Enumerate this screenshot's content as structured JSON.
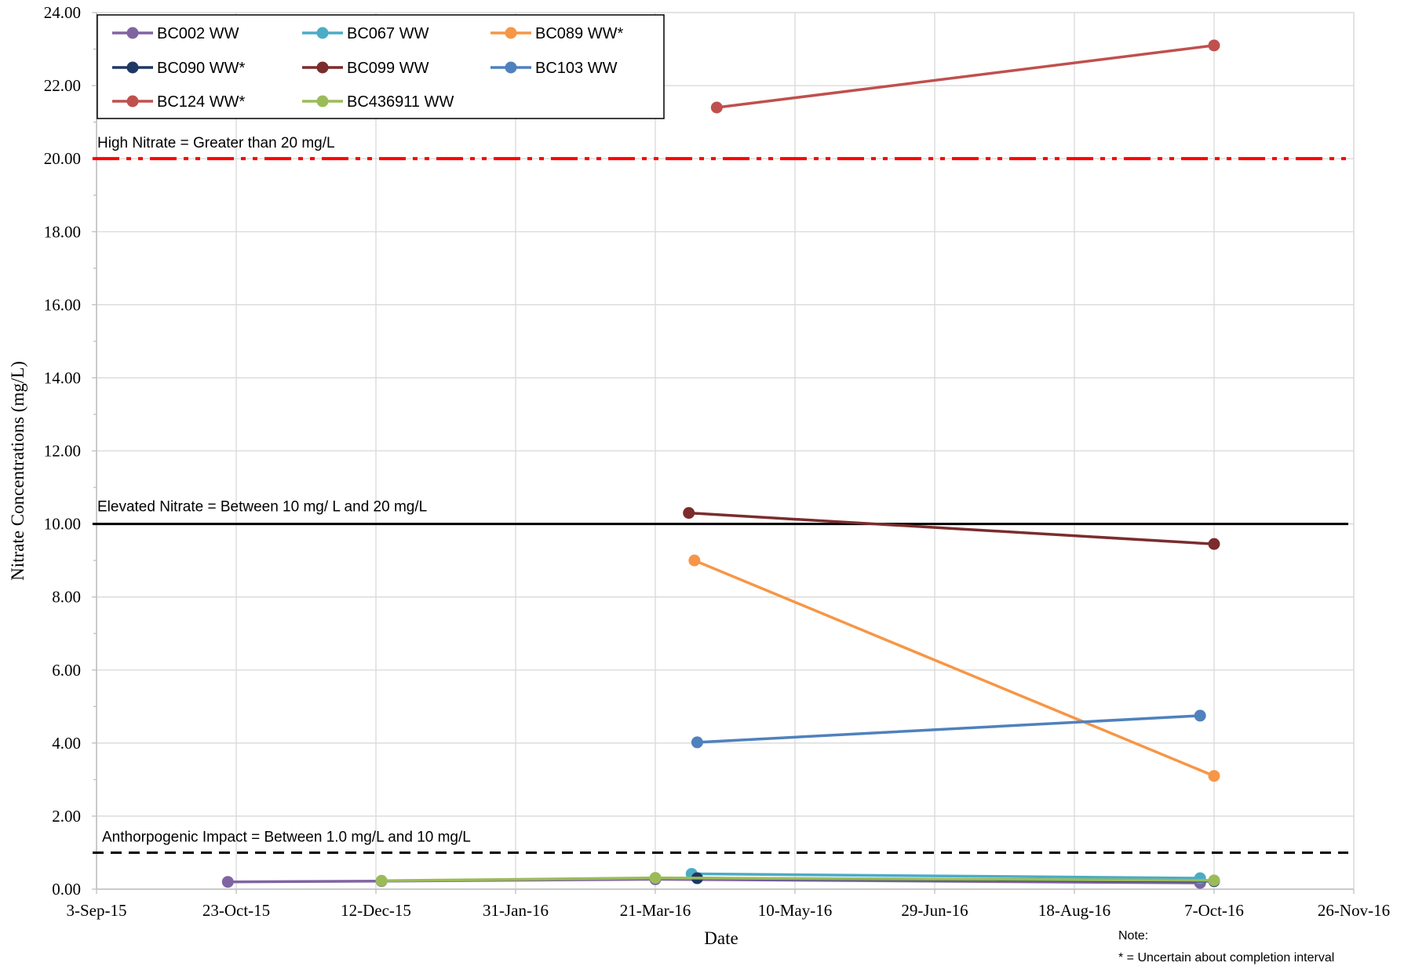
{
  "chart_data": {
    "type": "line",
    "title": "",
    "xlabel": "Date",
    "ylabel": "Nitrate Concentrations (mg/L)",
    "xlim": [
      "2015-09-03",
      "2016-11-26"
    ],
    "ylim": [
      0,
      24
    ],
    "y_ticks": [
      "0.00",
      "2.00",
      "4.00",
      "6.00",
      "8.00",
      "10.00",
      "12.00",
      "14.00",
      "16.00",
      "18.00",
      "20.00",
      "22.00",
      "24.00"
    ],
    "x_ticks": [
      {
        "date": "2015-09-03",
        "label": "3-Sep-15"
      },
      {
        "date": "2015-10-23",
        "label": "23-Oct-15"
      },
      {
        "date": "2015-12-12",
        "label": "12-Dec-15"
      },
      {
        "date": "2016-01-31",
        "label": "31-Jan-16"
      },
      {
        "date": "2016-03-21",
        "label": "21-Mar-16"
      },
      {
        "date": "2016-05-10",
        "label": "10-May-16"
      },
      {
        "date": "2016-06-29",
        "label": "29-Jun-16"
      },
      {
        "date": "2016-08-18",
        "label": "18-Aug-16"
      },
      {
        "date": "2016-10-07",
        "label": "7-Oct-16"
      },
      {
        "date": "2016-11-26",
        "label": "26-Nov-16"
      }
    ],
    "grid": true,
    "legend_position": "top-left",
    "series": [
      {
        "name": "BC002 WW",
        "color": "#8064A2",
        "points": [
          [
            "2015-10-20",
            0.2
          ],
          [
            "2015-12-14",
            0.22
          ],
          [
            "2016-03-21",
            0.27
          ],
          [
            "2016-10-02",
            0.17
          ]
        ]
      },
      {
        "name": "BC067 WW",
        "color": "#4BACC6",
        "points": [
          [
            "2016-04-03",
            0.42
          ],
          [
            "2016-10-02",
            0.3
          ]
        ]
      },
      {
        "name": "BC089 WW*",
        "color": "#F79646",
        "points": [
          [
            "2016-04-04",
            9.0
          ],
          [
            "2016-10-07",
            3.1
          ]
        ]
      },
      {
        "name": "BC090 WW*",
        "color": "#1F3864",
        "points": [
          [
            "2016-04-05",
            0.3
          ],
          [
            "2016-10-07",
            0.22
          ]
        ]
      },
      {
        "name": "BC099 WW",
        "color": "#7B2C2C",
        "points": [
          [
            "2016-04-02",
            10.3
          ],
          [
            "2016-10-07",
            9.45
          ]
        ]
      },
      {
        "name": "BC103 WW",
        "color": "#4F81BD",
        "points": [
          [
            "2016-04-05",
            4.02
          ],
          [
            "2016-10-02",
            4.75
          ]
        ]
      },
      {
        "name": "BC124 WW*",
        "color": "#C0504D",
        "points": [
          [
            "2016-04-12",
            21.4
          ],
          [
            "2016-10-07",
            23.1
          ]
        ]
      },
      {
        "name": "BC436911 WW",
        "color": "#9BBB59",
        "points": [
          [
            "2015-12-14",
            0.23
          ],
          [
            "2016-03-21",
            0.31
          ],
          [
            "2016-10-07",
            0.24
          ]
        ]
      }
    ],
    "reference_lines": [
      {
        "label": "High Nitrate = Greater than 20 mg/L",
        "y": 20,
        "color": "#FF0000",
        "style": "dash-dot-dot"
      },
      {
        "label": "Elevated Nitrate  = Between 10 mg/ L and 20 mg/L",
        "y": 10,
        "color": "#000000",
        "style": "solid"
      },
      {
        "label": "Anthorpogenic Impact  = Between 1.0 mg/L  and 10 mg/L",
        "y": 1,
        "color": "#000000",
        "style": "dashed"
      }
    ],
    "note": {
      "heading": "Note:",
      "text": "* = Uncertain about completion interval"
    }
  }
}
